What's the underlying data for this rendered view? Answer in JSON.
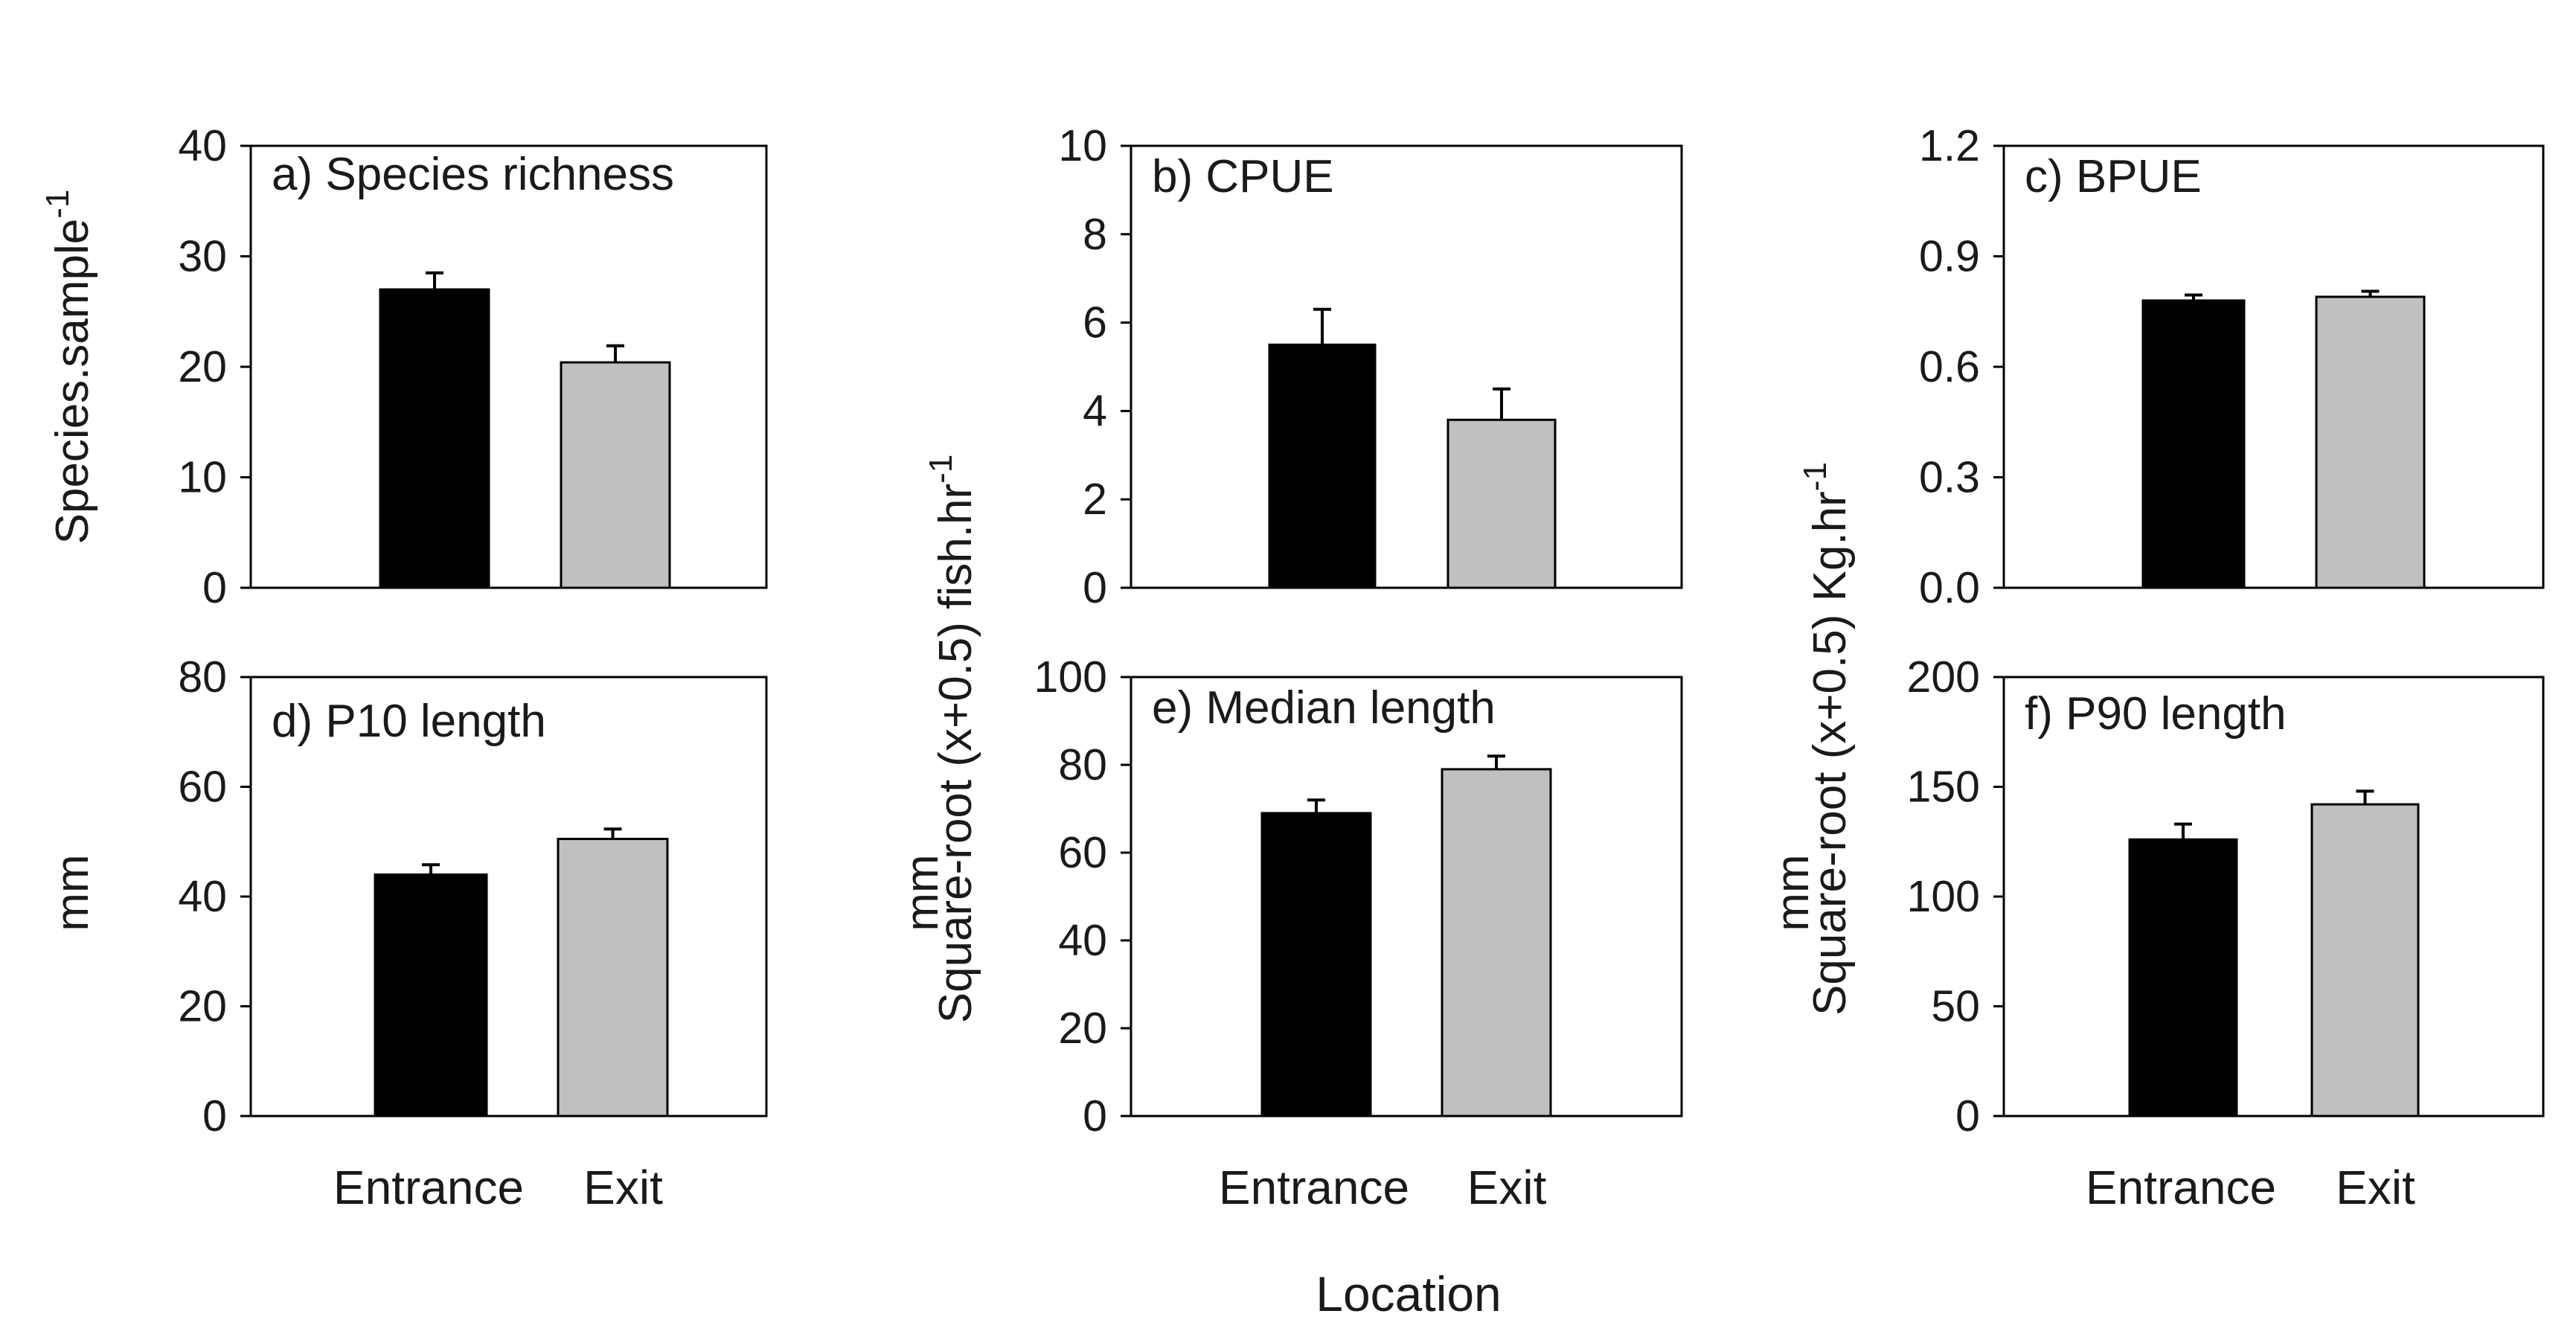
{
  "figure": {
    "x_label": "Location",
    "colors": {
      "Entrance": "#000000",
      "Exit": "#c0c0c0"
    }
  },
  "chart_data": [
    {
      "type": "bar",
      "panel": "a",
      "title": "a) Species richness",
      "ylabel": "Species.sample",
      "ylabel_sup": "-1",
      "categories": [
        "Entrance",
        "Exit"
      ],
      "values": [
        27.0,
        20.4
      ],
      "errors": [
        1.5,
        1.5
      ],
      "ylim": [
        0,
        40
      ],
      "yticks": [
        "0",
        "10",
        "20",
        "30",
        "40"
      ],
      "show_xticklabels": false
    },
    {
      "type": "bar",
      "panel": "b",
      "title": "b) CPUE",
      "ylabel": "Square-root (x+0.5) fish.hr",
      "ylabel_sup": "-1",
      "categories": [
        "Entrance",
        "Exit"
      ],
      "values": [
        5.5,
        3.8
      ],
      "errors": [
        0.8,
        0.7
      ],
      "ylim": [
        0,
        10
      ],
      "yticks": [
        "0",
        "2",
        "4",
        "6",
        "8",
        "10"
      ],
      "show_xticklabels": false
    },
    {
      "type": "bar",
      "panel": "c",
      "title": "c) BPUE",
      "ylabel": "Square-root (x+0.5) Kg.hr",
      "ylabel_sup": "-1",
      "categories": [
        "Entrance",
        "Exit"
      ],
      "values": [
        0.78,
        0.79
      ],
      "errors": [
        0.015,
        0.015
      ],
      "ylim": [
        0,
        1.2
      ],
      "yticks": [
        "0.0",
        "0.3",
        "0.6",
        "0.9",
        "1.2"
      ],
      "show_xticklabels": false
    },
    {
      "type": "bar",
      "panel": "d",
      "title": "d) P10 length",
      "ylabel": "mm",
      "ylabel_sup": "",
      "categories": [
        "Entrance",
        "Exit"
      ],
      "values": [
        44,
        50.5
      ],
      "errors": [
        1.8,
        1.8
      ],
      "ylim": [
        0,
        80
      ],
      "yticks": [
        "0",
        "20",
        "40",
        "60",
        "80"
      ],
      "show_xticklabels": true
    },
    {
      "type": "bar",
      "panel": "e",
      "title": "e) Median length",
      "ylabel": "mm",
      "ylabel_sup": "",
      "categories": [
        "Entrance",
        "Exit"
      ],
      "values": [
        69,
        79
      ],
      "errors": [
        3,
        3
      ],
      "ylim": [
        0,
        100
      ],
      "yticks": [
        "0",
        "20",
        "40",
        "60",
        "80",
        "100"
      ],
      "show_xticklabels": true
    },
    {
      "type": "bar",
      "panel": "f",
      "title": "f) P90 length",
      "ylabel": "mm",
      "ylabel_sup": "",
      "categories": [
        "Entrance",
        "Exit"
      ],
      "values": [
        126,
        142
      ],
      "errors": [
        7,
        6
      ],
      "ylim": [
        0,
        200
      ],
      "yticks": [
        "0",
        "50",
        "100",
        "150",
        "200"
      ],
      "show_xticklabels": true
    }
  ]
}
